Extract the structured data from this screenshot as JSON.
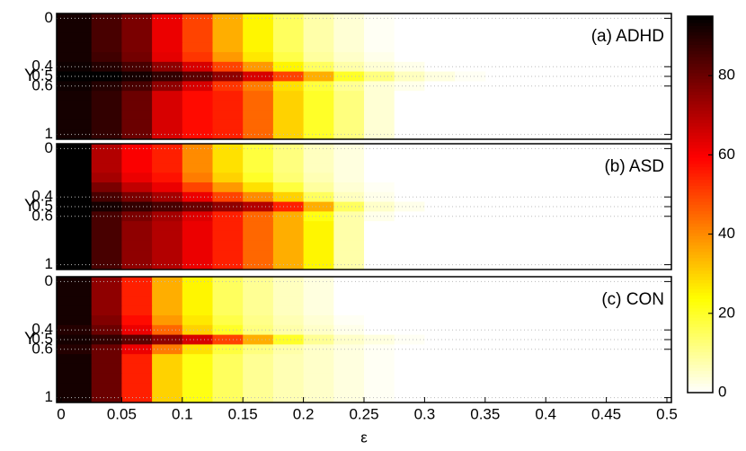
{
  "chart_data": {
    "type": "heatmap",
    "x_label": "ε",
    "y_label": "Y",
    "xlim": [
      0,
      0.5
    ],
    "xticks": [
      0,
      0.05,
      0.1,
      0.15,
      0.2,
      0.25,
      0.3,
      0.35,
      0.4,
      0.45,
      0.5
    ],
    "x_bins": [
      0,
      0.025,
      0.05,
      0.075,
      0.1,
      0.125,
      0.15,
      0.175,
      0.2,
      0.225,
      0.25,
      0.275,
      0.3,
      0.325,
      0.35
    ],
    "y_categories": [
      "0",
      null,
      null,
      null,
      null,
      "0.4",
      "0.5",
      "0.6",
      null,
      null,
      null,
      null,
      "1"
    ],
    "grid": true,
    "colormap": "hot_r",
    "clim": [
      0,
      95
    ],
    "cticks": [
      0,
      20,
      40,
      60,
      80
    ],
    "panels": [
      {
        "label": "(a) ADHD",
        "values": [
          [
            92,
            85,
            78,
            62,
            50,
            35,
            25,
            15,
            8,
            4,
            1,
            0,
            0,
            0
          ],
          [
            92,
            85,
            78,
            62,
            50,
            35,
            25,
            15,
            8,
            4,
            1,
            0,
            0,
            0
          ],
          [
            92,
            85,
            78,
            62,
            50,
            35,
            25,
            15,
            8,
            4,
            1,
            0,
            0,
            0
          ],
          [
            92,
            85,
            78,
            62,
            50,
            35,
            25,
            15,
            8,
            4,
            1,
            0,
            0,
            0
          ],
          [
            92,
            86,
            79,
            63,
            52,
            38,
            27,
            17,
            9,
            5,
            2,
            0,
            0,
            0
          ],
          [
            93,
            90,
            85,
            75,
            65,
            50,
            38,
            25,
            15,
            8,
            4,
            2,
            0,
            0
          ],
          [
            95,
            95,
            92,
            88,
            82,
            75,
            65,
            50,
            35,
            20,
            12,
            6,
            3,
            1
          ],
          [
            93,
            90,
            85,
            75,
            65,
            52,
            42,
            28,
            18,
            10,
            4,
            2,
            0,
            0
          ],
          [
            92,
            88,
            80,
            65,
            58,
            55,
            45,
            30,
            20,
            12,
            4,
            0,
            0,
            0
          ],
          [
            92,
            88,
            80,
            65,
            58,
            55,
            45,
            30,
            20,
            12,
            4,
            0,
            0,
            0
          ],
          [
            92,
            88,
            80,
            65,
            58,
            55,
            45,
            30,
            20,
            12,
            4,
            0,
            0,
            0
          ],
          [
            92,
            88,
            80,
            65,
            58,
            55,
            45,
            30,
            20,
            12,
            4,
            0,
            0,
            0
          ],
          [
            92,
            88,
            80,
            65,
            58,
            55,
            45,
            30,
            20,
            12,
            4,
            0,
            0,
            0
          ]
        ]
      },
      {
        "label": "(b) ASD",
        "values": [
          [
            95,
            70,
            60,
            55,
            40,
            28,
            18,
            12,
            6,
            3,
            0,
            0,
            0,
            0
          ],
          [
            95,
            70,
            60,
            55,
            40,
            28,
            18,
            12,
            6,
            3,
            0,
            0,
            0,
            0
          ],
          [
            95,
            70,
            60,
            55,
            40,
            28,
            18,
            12,
            6,
            3,
            0,
            0,
            0,
            0
          ],
          [
            95,
            72,
            62,
            57,
            42,
            30,
            20,
            13,
            7,
            3,
            0,
            0,
            0,
            0
          ],
          [
            95,
            78,
            68,
            62,
            50,
            38,
            28,
            18,
            9,
            4,
            1,
            0,
            0,
            0
          ],
          [
            95,
            85,
            78,
            72,
            62,
            50,
            40,
            30,
            15,
            6,
            2,
            0,
            0,
            0
          ],
          [
            95,
            92,
            88,
            85,
            80,
            75,
            70,
            55,
            35,
            15,
            5,
            2,
            0,
            0
          ],
          [
            95,
            85,
            78,
            72,
            64,
            55,
            45,
            35,
            22,
            8,
            2,
            0,
            0,
            0
          ],
          [
            95,
            85,
            75,
            70,
            62,
            55,
            45,
            35,
            25,
            8,
            0,
            0,
            0,
            0
          ],
          [
            95,
            85,
            75,
            70,
            62,
            55,
            45,
            35,
            25,
            8,
            0,
            0,
            0,
            0
          ],
          [
            95,
            85,
            75,
            70,
            62,
            55,
            45,
            35,
            25,
            8,
            0,
            0,
            0,
            0
          ],
          [
            95,
            85,
            75,
            70,
            62,
            55,
            45,
            35,
            25,
            8,
            0,
            0,
            0,
            0
          ],
          [
            95,
            85,
            75,
            70,
            62,
            55,
            45,
            35,
            25,
            8,
            0,
            0,
            0,
            0
          ]
        ]
      },
      {
        "label": "(c) CON",
        "values": [
          [
            92,
            75,
            55,
            35,
            25,
            15,
            10,
            6,
            3,
            0,
            0,
            0,
            0,
            0
          ],
          [
            92,
            75,
            55,
            35,
            25,
            15,
            10,
            6,
            3,
            0,
            0,
            0,
            0,
            0
          ],
          [
            92,
            75,
            55,
            35,
            25,
            15,
            10,
            6,
            3,
            0,
            0,
            0,
            0,
            0
          ],
          [
            92,
            75,
            55,
            35,
            25,
            15,
            10,
            6,
            3,
            0,
            0,
            0,
            0,
            0
          ],
          [
            92,
            77,
            58,
            38,
            27,
            17,
            11,
            7,
            4,
            1,
            0,
            0,
            0,
            0
          ],
          [
            90,
            80,
            62,
            45,
            30,
            20,
            12,
            8,
            5,
            2,
            0,
            0,
            0,
            0
          ],
          [
            92,
            88,
            82,
            75,
            65,
            50,
            35,
            20,
            10,
            5,
            3,
            1,
            0,
            0
          ],
          [
            90,
            80,
            62,
            42,
            28,
            18,
            12,
            8,
            5,
            3,
            1,
            0,
            0,
            0
          ],
          [
            92,
            80,
            55,
            30,
            22,
            15,
            10,
            7,
            5,
            3,
            1,
            0,
            0,
            0
          ],
          [
            92,
            80,
            55,
            30,
            22,
            15,
            10,
            7,
            5,
            3,
            1,
            0,
            0,
            0
          ],
          [
            92,
            80,
            55,
            30,
            22,
            15,
            10,
            7,
            5,
            3,
            1,
            0,
            0,
            0
          ],
          [
            92,
            80,
            55,
            30,
            22,
            15,
            10,
            7,
            5,
            3,
            1,
            0,
            0,
            0
          ],
          [
            92,
            80,
            55,
            30,
            22,
            15,
            10,
            7,
            5,
            3,
            1,
            0,
            0,
            0
          ]
        ]
      }
    ]
  }
}
